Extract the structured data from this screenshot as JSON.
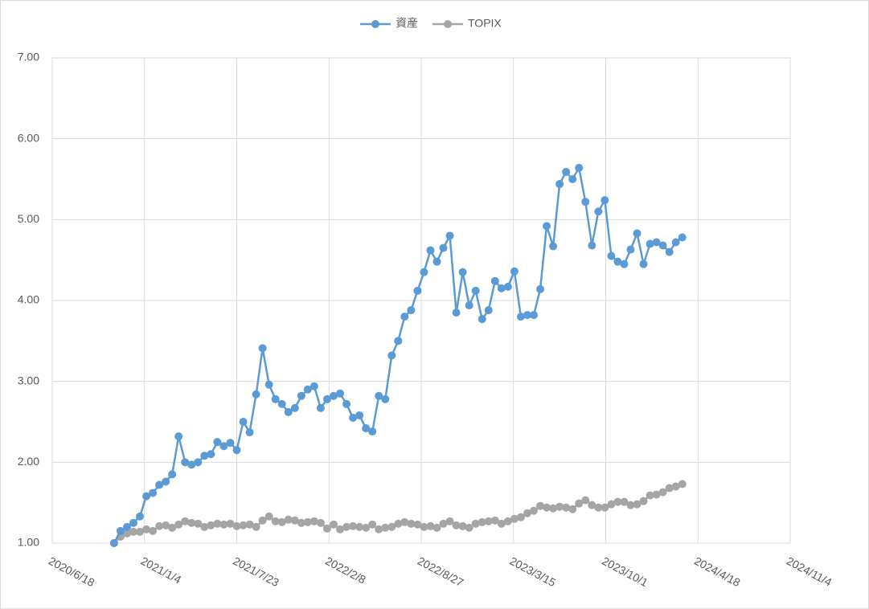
{
  "chart_data": {
    "type": "line",
    "x": [
      "2020/10/30",
      "2020/11/13",
      "2020/11/27",
      "2020/12/11",
      "2020/12/25",
      "2021/1/8",
      "2021/1/22",
      "2021/2/5",
      "2021/2/19",
      "2021/3/5",
      "2021/3/19",
      "2021/4/2",
      "2021/4/16",
      "2021/4/30",
      "2021/5/14",
      "2021/5/28",
      "2021/6/11",
      "2021/6/25",
      "2021/7/9",
      "2021/7/23",
      "2021/8/6",
      "2021/8/20",
      "2021/9/3",
      "2021/9/17",
      "2021/10/1",
      "2021/10/15",
      "2021/10/29",
      "2021/11/12",
      "2021/11/26",
      "2021/12/10",
      "2021/12/24",
      "2022/1/7",
      "2022/1/21",
      "2022/2/4",
      "2022/2/18",
      "2022/3/4",
      "2022/3/18",
      "2022/4/1",
      "2022/4/15",
      "2022/4/29",
      "2022/5/13",
      "2022/5/27",
      "2022/6/10",
      "2022/6/24",
      "2022/7/8",
      "2022/7/22",
      "2022/8/5",
      "2022/8/19",
      "2022/9/2",
      "2022/9/16",
      "2022/9/30",
      "2022/10/14",
      "2022/10/28",
      "2022/11/11",
      "2022/11/25",
      "2022/12/9",
      "2022/12/23",
      "2023/1/6",
      "2023/1/20",
      "2023/2/3",
      "2023/2/17",
      "2023/3/3",
      "2023/3/17",
      "2023/3/31",
      "2023/4/14",
      "2023/4/28",
      "2023/5/12",
      "2023/5/26",
      "2023/6/9",
      "2023/6/23",
      "2023/7/7",
      "2023/7/21",
      "2023/8/4",
      "2023/8/18",
      "2023/9/1",
      "2023/9/15",
      "2023/9/29",
      "2023/10/13",
      "2023/10/27",
      "2023/11/10",
      "2023/11/24",
      "2023/12/8",
      "2023/12/22",
      "2024/1/5",
      "2024/1/19",
      "2024/2/2",
      "2024/2/16",
      "2024/3/1",
      "2024/3/15"
    ],
    "series": [
      {
        "name": "資産",
        "color": "#5b9bd5",
        "values": [
          1.0,
          1.15,
          1.2,
          1.25,
          1.33,
          1.58,
          1.62,
          1.72,
          1.76,
          1.85,
          2.32,
          2.0,
          1.97,
          2.0,
          2.08,
          2.1,
          2.25,
          2.2,
          2.24,
          2.15,
          2.5,
          2.37,
          2.84,
          3.41,
          2.96,
          2.78,
          2.72,
          2.62,
          2.67,
          2.82,
          2.9,
          2.94,
          2.67,
          2.78,
          2.82,
          2.85,
          2.72,
          2.55,
          2.58,
          2.42,
          2.38,
          2.82,
          2.78,
          3.32,
          3.5,
          3.8,
          3.88,
          4.12,
          4.35,
          4.62,
          4.48,
          4.65,
          4.8,
          3.85,
          4.35,
          3.94,
          4.12,
          3.77,
          3.88,
          4.24,
          4.15,
          4.17,
          4.36,
          3.8,
          3.82,
          3.82,
          4.14,
          4.92,
          4.67,
          5.44,
          5.59,
          5.5,
          5.64,
          5.22,
          4.68,
          5.1,
          5.24,
          4.55,
          4.48,
          4.45,
          4.63,
          4.83,
          4.45,
          4.7,
          4.72,
          4.68,
          4.6,
          4.72,
          4.78
        ]
      },
      {
        "name": "TOPIX",
        "color": "#a5a5a5",
        "values": [
          1.0,
          1.08,
          1.12,
          1.14,
          1.14,
          1.17,
          1.15,
          1.21,
          1.22,
          1.19,
          1.23,
          1.27,
          1.25,
          1.24,
          1.2,
          1.22,
          1.24,
          1.23,
          1.24,
          1.21,
          1.22,
          1.23,
          1.2,
          1.28,
          1.33,
          1.27,
          1.26,
          1.29,
          1.28,
          1.25,
          1.26,
          1.27,
          1.25,
          1.18,
          1.23,
          1.17,
          1.2,
          1.21,
          1.2,
          1.19,
          1.23,
          1.17,
          1.19,
          1.2,
          1.24,
          1.26,
          1.24,
          1.23,
          1.2,
          1.21,
          1.19,
          1.24,
          1.27,
          1.22,
          1.21,
          1.19,
          1.24,
          1.26,
          1.27,
          1.28,
          1.24,
          1.27,
          1.3,
          1.32,
          1.37,
          1.4,
          1.46,
          1.44,
          1.43,
          1.45,
          1.44,
          1.42,
          1.49,
          1.53,
          1.47,
          1.44,
          1.44,
          1.48,
          1.51,
          1.51,
          1.47,
          1.48,
          1.52,
          1.59,
          1.6,
          1.63,
          1.68,
          1.7,
          1.73
        ]
      }
    ],
    "xlim": [
      "2020/6/18",
      "2024/11/4"
    ],
    "xticks": [
      "2020/6/18",
      "2021/1/4",
      "2021/7/23",
      "2022/2/8",
      "2022/8/27",
      "2023/3/15",
      "2023/10/1",
      "2024/4/18",
      "2024/11/4"
    ],
    "ylim": [
      1,
      7
    ],
    "yticks": [
      {
        "value": 1,
        "label": "1.00"
      },
      {
        "value": 2,
        "label": "2.00"
      },
      {
        "value": 3,
        "label": "3.00"
      },
      {
        "value": 4,
        "label": "4.00"
      },
      {
        "value": 5,
        "label": "5.00"
      },
      {
        "value": 6,
        "label": "6.00"
      },
      {
        "value": 7,
        "label": "7.00"
      }
    ],
    "grid": true,
    "legend": "top"
  }
}
